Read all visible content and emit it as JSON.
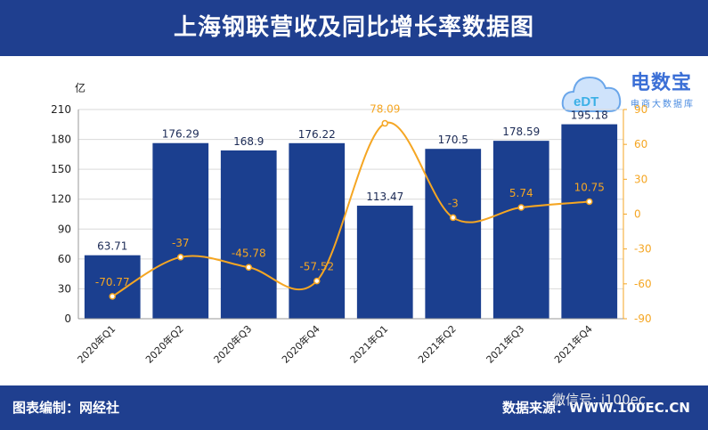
{
  "title": "上海钢联营收及同比增长率数据图",
  "footer": {
    "left": "图表编制：网经社",
    "right": "数据来源：WWW.100EC.CN"
  },
  "watermark": {
    "brand": "电数宝",
    "sub": "电商大数据库",
    "logo_text": "eDT"
  },
  "wechat": "微信号: i100ec",
  "colors": {
    "bar": "#1b3f8f",
    "line": "#f5a623",
    "header": "#1f3f8f"
  },
  "chart_data": {
    "type": "bar",
    "categories": [
      "2020年Q1",
      "2020年Q2",
      "2020年Q3",
      "2020年Q4",
      "2021年Q1",
      "2021年Q2",
      "2021年Q3",
      "2021年Q4"
    ],
    "series": [
      {
        "type": "bar",
        "axis": "left",
        "values": [
          63.71,
          176.29,
          168.9,
          176.22,
          113.47,
          170.5,
          178.59,
          195.18
        ]
      },
      {
        "type": "line",
        "axis": "right",
        "values": [
          -70.77,
          -37,
          -45.78,
          -57.52,
          78.09,
          -3,
          5.74,
          10.75
        ]
      }
    ],
    "ylabel": "亿",
    "ylim": [
      0,
      210
    ],
    "yticks": [
      0,
      30,
      60,
      90,
      120,
      150,
      180,
      210
    ],
    "y2lim": [
      -90,
      90
    ],
    "y2ticks": [
      -90,
      -60,
      -30,
      0,
      30,
      60,
      90
    ],
    "grid": true,
    "legend": "none"
  }
}
